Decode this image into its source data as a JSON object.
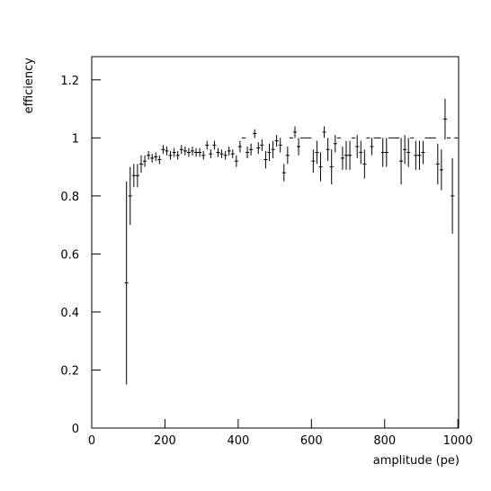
{
  "chart_data": {
    "type": "errorbar",
    "x_label": "amplitude (pe)",
    "y_label": "efficiency",
    "xlim": [
      0,
      1002
    ],
    "ylim": [
      0,
      1.28
    ],
    "xticks": [
      0,
      200,
      400,
      600,
      800,
      1000
    ],
    "yticks": [
      0,
      0.2,
      0.4,
      0.6,
      0.8,
      1,
      1.2
    ],
    "x_error": 5,
    "color": "#000000",
    "x": [
      95,
      105,
      115,
      125,
      135,
      145,
      155,
      165,
      175,
      185,
      195,
      205,
      215,
      225,
      235,
      245,
      255,
      265,
      275,
      285,
      295,
      305,
      315,
      325,
      335,
      345,
      355,
      365,
      375,
      385,
      395,
      405,
      415,
      425,
      435,
      445,
      455,
      465,
      475,
      485,
      495,
      505,
      515,
      525,
      535,
      545,
      555,
      565,
      575,
      585,
      595,
      605,
      615,
      625,
      635,
      645,
      655,
      665,
      675,
      685,
      695,
      705,
      715,
      725,
      735,
      745,
      755,
      765,
      775,
      785,
      795,
      805,
      815,
      825,
      835,
      845,
      855,
      865,
      875,
      885,
      895,
      905,
      915,
      925,
      935,
      945,
      955,
      965,
      975,
      985,
      995
    ],
    "values": [
      0.5,
      0.8,
      0.87,
      0.87,
      0.91,
      0.92,
      0.94,
      0.93,
      0.935,
      0.925,
      0.96,
      0.955,
      0.94,
      0.95,
      0.94,
      0.96,
      0.955,
      0.95,
      0.955,
      0.95,
      0.95,
      0.94,
      0.975,
      0.945,
      0.975,
      0.95,
      0.945,
      0.94,
      0.955,
      0.945,
      0.92,
      0.97,
      1,
      0.95,
      0.96,
      1.015,
      0.965,
      0.975,
      0.925,
      0.95,
      0.96,
      0.99,
      0.975,
      0.88,
      0.94,
      1,
      1.02,
      0.97,
      1,
      1,
      1,
      0.92,
      0.95,
      0.9,
      1.02,
      0.96,
      0.9,
      0.98,
      1,
      0.93,
      0.94,
      0.94,
      1,
      0.97,
      0.95,
      0.91,
      1,
      0.97,
      1,
      1,
      0.95,
      0.95,
      1,
      1,
      1,
      0.92,
      0.96,
      0.95,
      1,
      0.94,
      0.94,
      0.95,
      1,
      1,
      1,
      0.91,
      0.89,
      1.065,
      1,
      0.8,
      1
    ],
    "errors": [
      0.35,
      0.1,
      0.04,
      0.04,
      0.03,
      0.02,
      0.015,
      0.015,
      0.015,
      0.015,
      0.015,
      0.015,
      0.015,
      0.015,
      0.015,
      0.015,
      0.015,
      0.015,
      0.015,
      0.015,
      0.015,
      0.015,
      0.015,
      0.015,
      0.015,
      0.015,
      0.015,
      0.015,
      0.015,
      0.015,
      0.02,
      0.02,
      0,
      0.02,
      0.02,
      0.015,
      0.02,
      0.02,
      0.03,
      0.03,
      0.03,
      0.02,
      0.025,
      0.03,
      0.03,
      0,
      0.02,
      0.03,
      0,
      0,
      0,
      0.04,
      0.04,
      0.05,
      0.02,
      0.04,
      0.06,
      0.03,
      0,
      0.04,
      0.05,
      0.05,
      0,
      0.04,
      0.04,
      0.05,
      0,
      0.03,
      0,
      0,
      0.05,
      0.05,
      0,
      0,
      0,
      0.08,
      0.05,
      0.05,
      0,
      0.05,
      0.05,
      0.04,
      0,
      0,
      0,
      0.07,
      0.07,
      0.07,
      0,
      0.13,
      0
    ]
  }
}
